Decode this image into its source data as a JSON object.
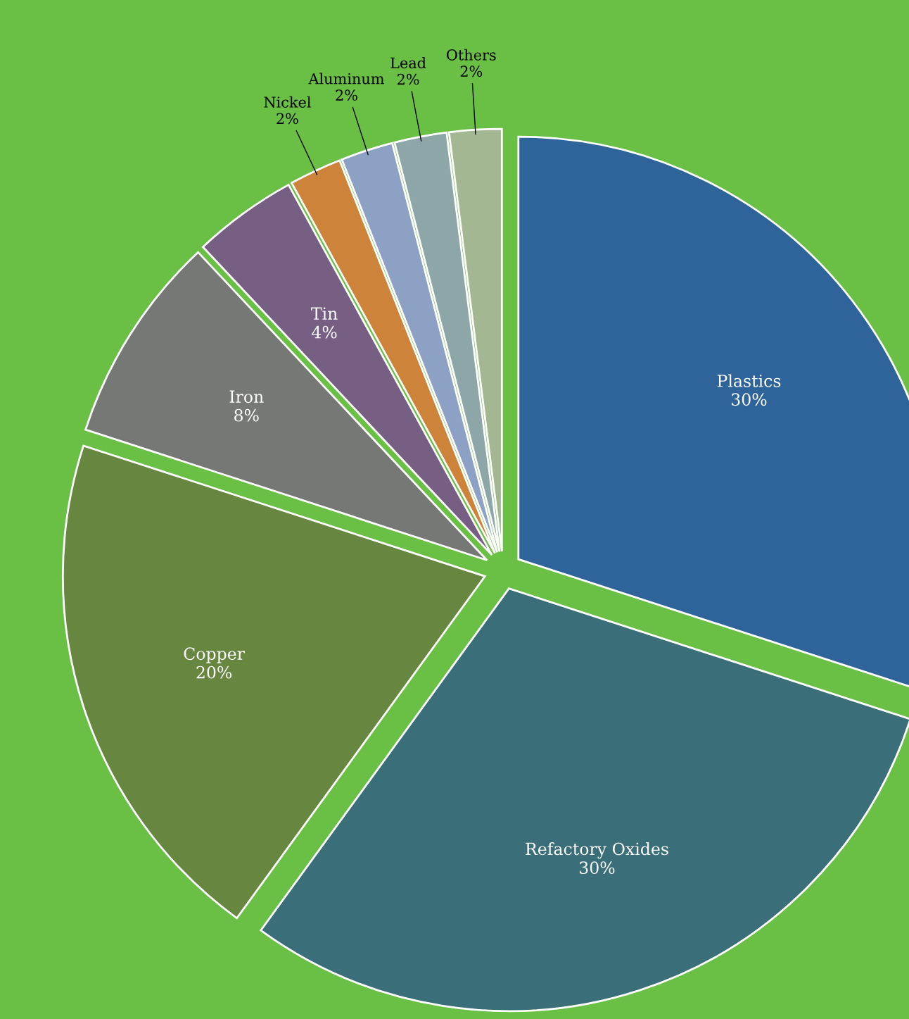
{
  "chart_data": {
    "type": "pie",
    "categories": [
      "Plastics",
      "Refactory Oxides",
      "Copper",
      "Iron",
      "Tin",
      "Nickel",
      "Aluminum",
      "Lead",
      "Others"
    ],
    "values": [
      30,
      30,
      20,
      8,
      4,
      2,
      2,
      2,
      2
    ],
    "colors": [
      "#2e6499",
      "#3a6e78",
      "#678640",
      "#767876",
      "#765f82",
      "#cd843a",
      "#8ca1c4",
      "#8da7a8",
      "#a3b892"
    ],
    "value_labels": [
      "30%",
      "30%",
      "20%",
      "8%",
      "4%",
      "2%",
      "2%",
      "2%",
      "2%"
    ],
    "legend": false
  }
}
